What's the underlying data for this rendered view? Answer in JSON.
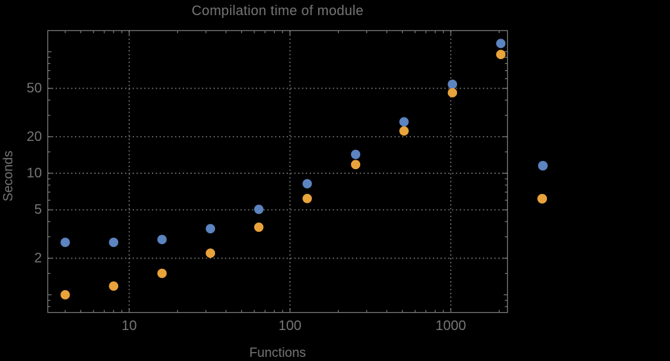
{
  "page": {
    "background": "#000000"
  },
  "chart_data": {
    "type": "scatter",
    "title": "Compilation time of module",
    "xlabel": "Functions",
    "ylabel": "Seconds",
    "x_scale": "log",
    "y_scale": "log",
    "xlim": [
      3.1,
      2264
    ],
    "ylim": [
      0.71,
      150.3
    ],
    "grid": "dotted major gridlines on both axes",
    "x": [
      4,
      8,
      16,
      32,
      64,
      128,
      256,
      512,
      1024,
      2048
    ],
    "series": [
      {
        "key": "blue",
        "color": "#5B84C0",
        "values": [
          2.7,
          2.7,
          2.85,
          3.5,
          5.05,
          8.2,
          14.3,
          26.5,
          54,
          117
        ]
      },
      {
        "key": "orange",
        "color": "#E9A33B",
        "values": [
          1.0,
          1.18,
          1.5,
          2.2,
          3.6,
          6.2,
          11.8,
          22.3,
          46,
          95
        ]
      }
    ],
    "x_ticks": {
      "values": [
        10,
        100,
        1000
      ],
      "labels": [
        "10",
        "100",
        "1000"
      ]
    },
    "y_ticks": {
      "values": [
        2,
        5,
        10,
        20,
        50
      ],
      "labels": [
        "2",
        "5",
        "10",
        "20",
        "50"
      ]
    },
    "x_minor_ticks": [
      4,
      5,
      6,
      7,
      8,
      9,
      20,
      30,
      40,
      50,
      60,
      70,
      80,
      90,
      200,
      300,
      400,
      500,
      600,
      700,
      800,
      900,
      2000
    ],
    "y_minor_ticks": [
      0.8,
      0.9,
      1,
      1.5,
      3,
      4,
      6,
      7,
      8,
      9,
      15,
      30,
      40,
      60,
      70,
      80,
      90,
      100
    ],
    "colors": {
      "text": "#757575",
      "frame": "#7B7B7B",
      "grid": "#777777"
    },
    "legend": {
      "position": "right-of-plot",
      "labels_visible": false,
      "markers": [
        {
          "key": "blue",
          "color": "#5B84C0"
        },
        {
          "key": "orange",
          "color": "#E9A33B"
        }
      ]
    }
  }
}
